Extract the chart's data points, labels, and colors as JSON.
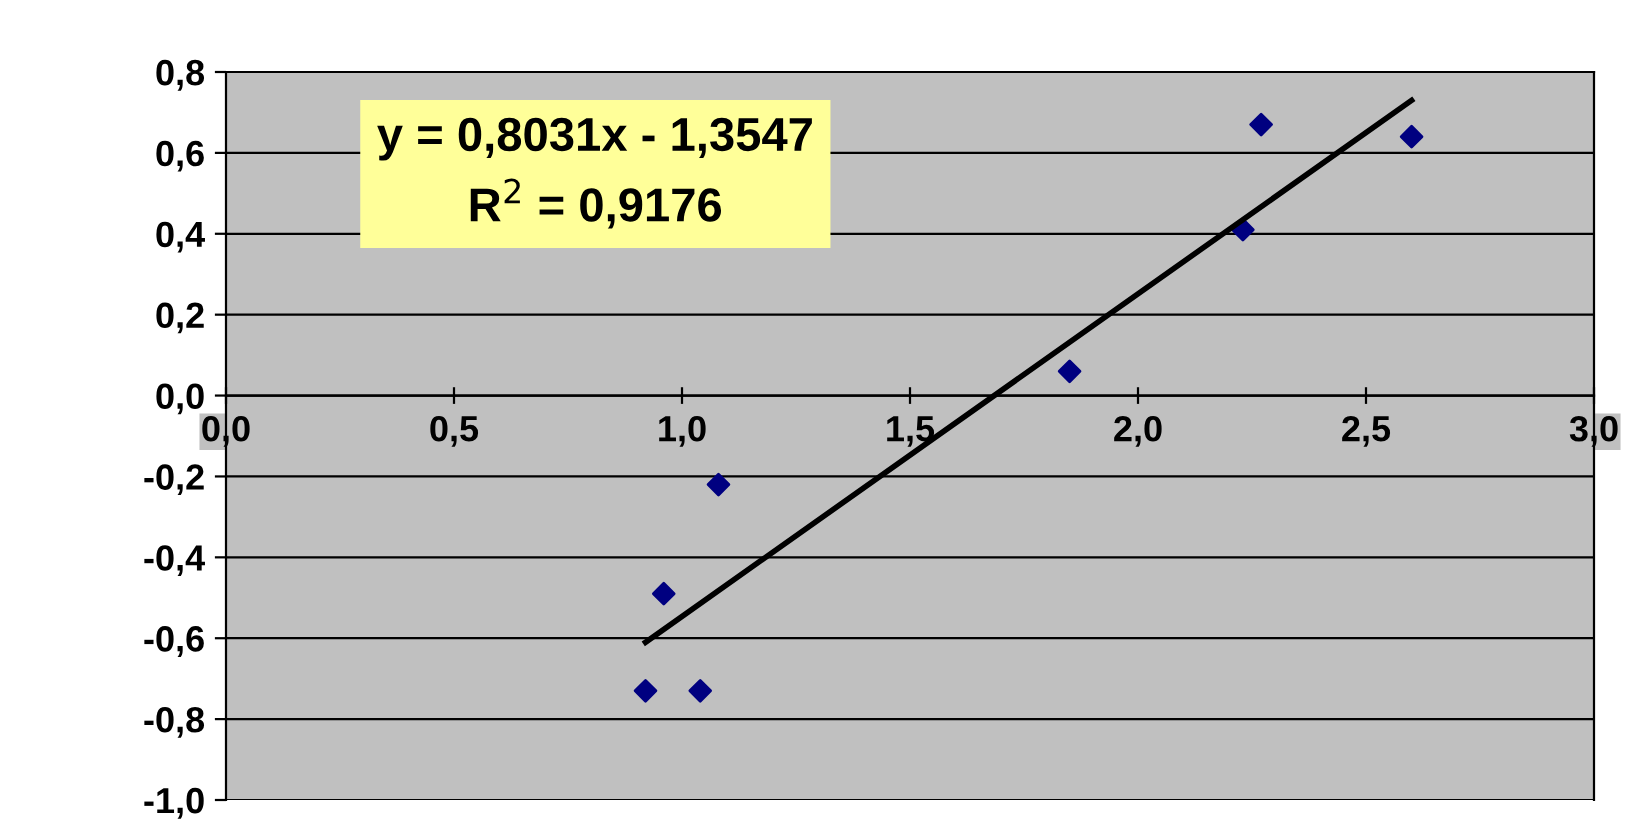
{
  "chart_data": {
    "type": "scatter",
    "xlim": [
      0,
      3
    ],
    "ylim": [
      -1,
      0.8
    ],
    "xticks": [
      {
        "value": 0,
        "label": "0,0"
      },
      {
        "value": 0.5,
        "label": "0,5"
      },
      {
        "value": 1,
        "label": "1,0"
      },
      {
        "value": 1.5,
        "label": "1,5"
      },
      {
        "value": 2,
        "label": "2,0"
      },
      {
        "value": 2.5,
        "label": "2,5"
      },
      {
        "value": 3,
        "label": "3,0"
      }
    ],
    "yticks": [
      {
        "value": -1,
        "label": "-1,0"
      },
      {
        "value": -0.8,
        "label": "-0,8"
      },
      {
        "value": -0.6,
        "label": "-0,6"
      },
      {
        "value": -0.4,
        "label": "-0,4"
      },
      {
        "value": -0.2,
        "label": "-0,2"
      },
      {
        "value": 0,
        "label": "0,0"
      },
      {
        "value": 0.2,
        "label": "0,2"
      },
      {
        "value": 0.4,
        "label": "0,4"
      },
      {
        "value": 0.6,
        "label": "0,6"
      },
      {
        "value": 0.8,
        "label": "0,8"
      }
    ],
    "grid": "y",
    "series": [
      {
        "marker": "diamond",
        "color": "#000080",
        "x": [
          0.92,
          1.04,
          0.96,
          1.08,
          1.85,
          2.23,
          2.27,
          2.6
        ],
        "values": [
          -0.73,
          -0.73,
          -0.49,
          -0.22,
          0.06,
          0.41,
          0.67,
          0.64
        ]
      },
      {
        "type": "line",
        "color": "#000000",
        "x": [
          0.92,
          2.6
        ],
        "values": [
          -0.61,
          0.73
        ]
      }
    ],
    "annotations": [
      "y = 0,8031x - 1,3547\nR$^{2}$ = 0,9176"
    ]
  }
}
